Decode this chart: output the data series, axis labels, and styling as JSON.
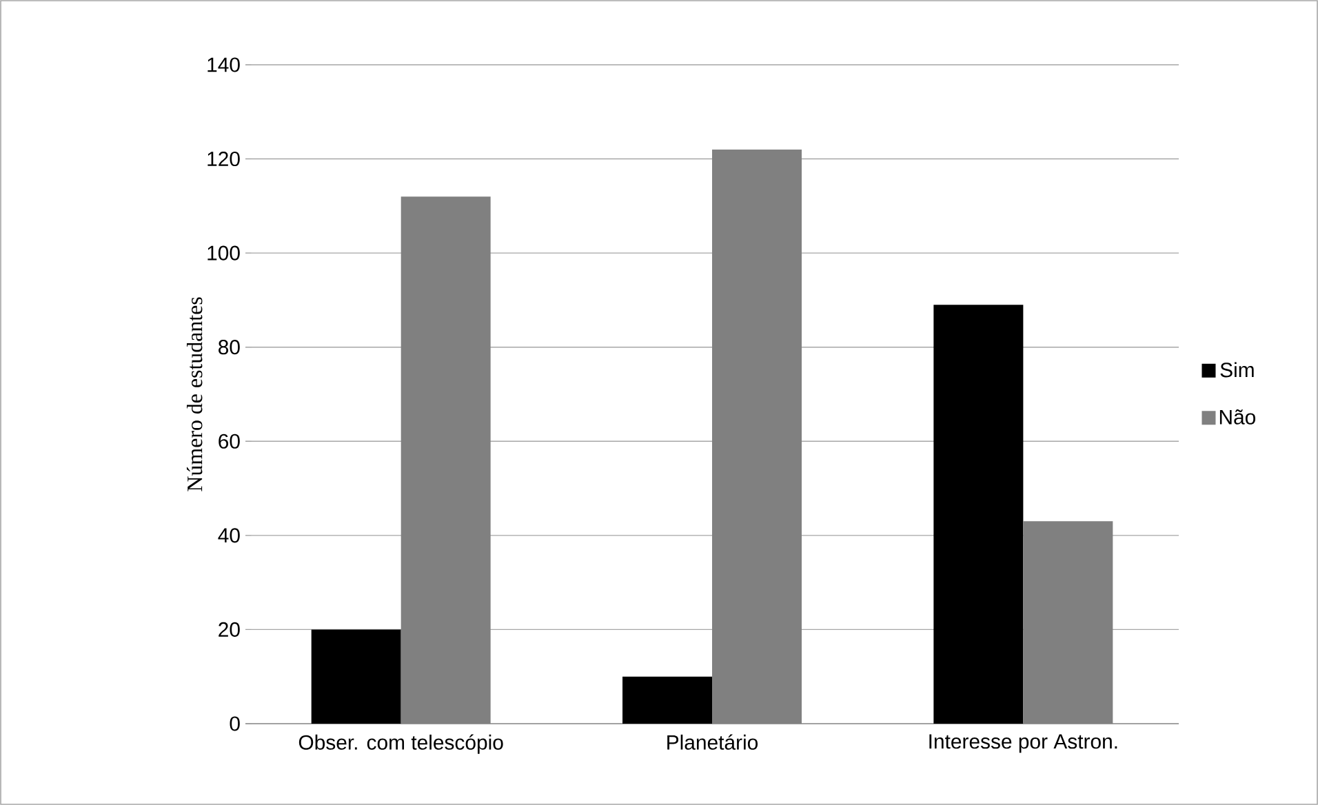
{
  "chart_data": {
    "type": "bar",
    "ylabel": "Número de estudantes",
    "categories": [
      "Obser. com telescópio",
      "Planetário",
      "Interesse por Astron."
    ],
    "series": [
      {
        "name": "Sim",
        "color": "#000000",
        "values": [
          20,
          10,
          89
        ]
      },
      {
        "name": "Não",
        "color": "#808080",
        "values": [
          112,
          122,
          43
        ]
      }
    ],
    "ylim": [
      0,
      140
    ],
    "yticks": [
      0,
      20,
      40,
      60,
      80,
      100,
      120,
      140
    ],
    "grid": "y",
    "legend": "right"
  }
}
